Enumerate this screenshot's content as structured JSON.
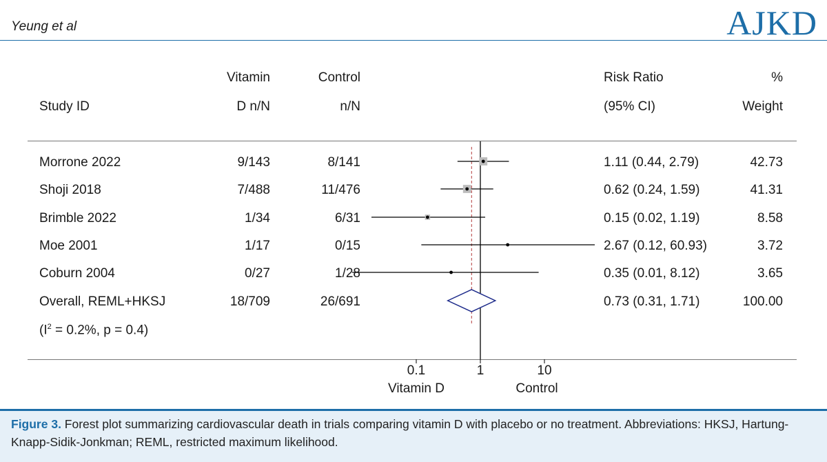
{
  "header": {
    "author": "Yeung et al",
    "journal": "AJKD",
    "brand_color": "#1d6ea8"
  },
  "columns": {
    "study_1": "",
    "study_2": "Study ID",
    "vitd_1": "Vitamin",
    "vitd_2": "D n/N",
    "ctrl_1": "Control",
    "ctrl_2": "n/N",
    "rr_1": "Risk Ratio",
    "rr_2": "(95% CI)",
    "wt_1": "%",
    "wt_2": "Weight"
  },
  "heterogeneity": {
    "prefix": "(I",
    "sup": "2",
    "suffix": " = 0.2%, p = 0.4)"
  },
  "chart_data": {
    "type": "forest",
    "scale": "log",
    "xlim": [
      0.009,
      70
    ],
    "ticks": [
      {
        "value": 0.1,
        "label": "0.1"
      },
      {
        "value": 1,
        "label": "1"
      },
      {
        "value": 10,
        "label": "10"
      }
    ],
    "left_label": "Vitamin D",
    "right_label": "Control",
    "null_value": 1,
    "pooled_line_value": 0.73,
    "studies": [
      {
        "name": "Morrone 2022",
        "vitd": "9/143",
        "ctrl": "8/141",
        "rr": 1.11,
        "lo": 0.44,
        "hi": 2.79,
        "ci": "1.11 (0.44, 2.79)",
        "weight": "42.73",
        "w": 42.73
      },
      {
        "name": "Shoji 2018",
        "vitd": "7/488",
        "ctrl": "11/476",
        "rr": 0.62,
        "lo": 0.24,
        "hi": 1.59,
        "ci": "0.62 (0.24, 1.59)",
        "weight": "41.31",
        "w": 41.31
      },
      {
        "name": "Brimble 2022",
        "vitd": "1/34",
        "ctrl": "6/31",
        "rr": 0.15,
        "lo": 0.02,
        "hi": 1.19,
        "ci": "0.15 (0.02, 1.19)",
        "weight": "8.58",
        "w": 8.58
      },
      {
        "name": "Moe 2001",
        "vitd": "1/17",
        "ctrl": "0/15",
        "rr": 2.67,
        "lo": 0.12,
        "hi": 60.93,
        "ci": "2.67 (0.12, 60.93)",
        "weight": "3.72",
        "w": 3.72
      },
      {
        "name": "Coburn 2004",
        "vitd": "0/27",
        "ctrl": "1/28",
        "rr": 0.35,
        "lo": 0.01,
        "hi": 8.12,
        "ci": "0.35 (0.01, 8.12)",
        "weight": "3.65",
        "w": 3.65
      }
    ],
    "overall": {
      "name": "Overall, REML+HKSJ",
      "vitd": "18/709",
      "ctrl": "26/691",
      "rr": 0.73,
      "lo": 0.31,
      "hi": 1.71,
      "ci": "0.73 (0.31, 1.71)",
      "weight": "100.00"
    }
  },
  "caption": {
    "label": "Figure 3.",
    "text": " Forest plot summarizing cardiovascular death in trials comparing vitamin D with placebo or no treatment. Abbreviations: HKSJ, Hartung-Knapp-Sidik-Jonkman; REML, restricted maximum likelihood."
  }
}
